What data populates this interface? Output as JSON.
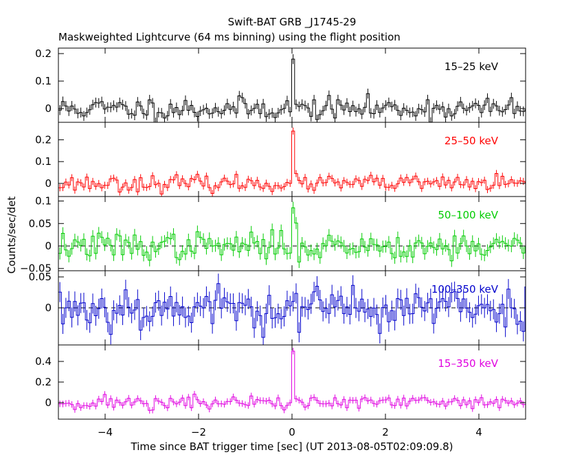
{
  "chart_data": {
    "type": "line",
    "title": "Swift-BAT GRB _J1745-29",
    "subtitle": "Maskweighted Lightcurve (64 ms binning) using the flight position",
    "xlabel": "Time since BAT trigger time [sec] (UT 2013-08-05T02:09:09.8)",
    "ylabel": "Counts/sec/det",
    "xlim": [
      -5,
      5
    ],
    "xticks": [
      -4,
      -2,
      0,
      2,
      4
    ],
    "xtick_labels": [
      "−4",
      "−2",
      "0",
      "2",
      "4"
    ],
    "bin_width": 0.064,
    "panels": [
      {
        "name": "15–25 keV",
        "color": "#000000",
        "ylim": [
          -0.05,
          0.22
        ],
        "yticks": [
          0,
          0.1,
          0.2
        ],
        "ytick_labels": [
          "0",
          "0.1",
          "0.2"
        ],
        "dashed_zero": false,
        "noise": 0.02,
        "peak": 0.18,
        "seed": 11
      },
      {
        "name": "25–50 keV",
        "color": "#ff0000",
        "ylim": [
          -0.06,
          0.28
        ],
        "yticks": [
          0,
          0.1,
          0.2
        ],
        "ytick_labels": [
          "0",
          "0.1",
          "0.2"
        ],
        "dashed_zero": false,
        "noise": 0.018,
        "peak": 0.24,
        "seed": 23
      },
      {
        "name": "50–100 keV",
        "color": "#00cc00",
        "ylim": [
          -0.055,
          0.11
        ],
        "yticks": [
          -0.05,
          0,
          0.05,
          0.1
        ],
        "ytick_labels": [
          "−0.05",
          "0",
          "0.05",
          "0.1"
        ],
        "dashed_zero": true,
        "noise": 0.015,
        "peak": 0.085,
        "seed": 37
      },
      {
        "name": "100–350 keV",
        "color": "#0000cc",
        "ylim": [
          -0.06,
          0.06
        ],
        "yticks": [
          0,
          0.05
        ],
        "ytick_labels": [
          "0",
          "0.05"
        ],
        "dashed_zero": true,
        "noise": 0.018,
        "peak": 0.0,
        "seed": 53
      },
      {
        "name": "15–350 keV",
        "color": "#e000e0",
        "ylim": [
          -0.16,
          0.56
        ],
        "yticks": [
          0,
          0.2,
          0.4
        ],
        "ytick_labels": [
          "0",
          "0.2",
          "0.4"
        ],
        "dashed_zero": false,
        "noise": 0.035,
        "peak": 0.5,
        "seed": 71
      }
    ]
  }
}
